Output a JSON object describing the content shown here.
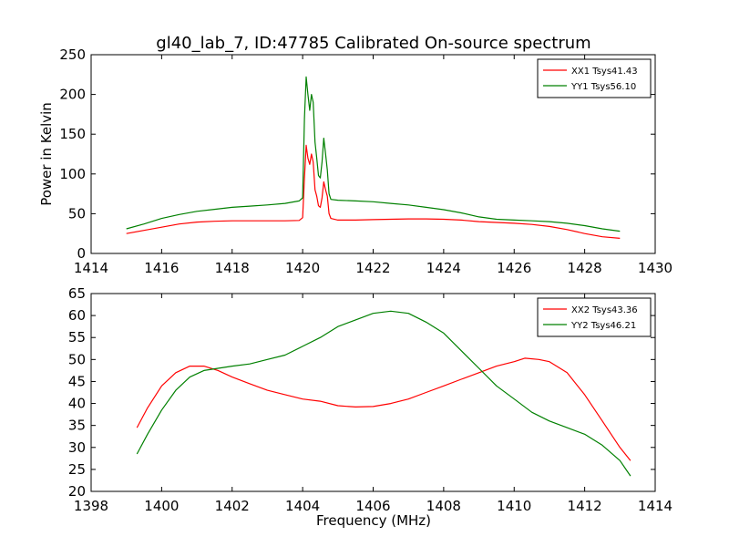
{
  "chart_data": [
    {
      "type": "line",
      "title": "gl40_lab_7, ID:47785 Calibrated On-source spectrum",
      "xlabel": "",
      "ylabel": "Power in Kelvin",
      "xlim": [
        1414,
        1430
      ],
      "ylim": [
        0,
        250
      ],
      "xticks": [
        1414,
        1416,
        1418,
        1420,
        1422,
        1424,
        1426,
        1428,
        1430
      ],
      "yticks": [
        0,
        50,
        100,
        150,
        200,
        250
      ],
      "legend_position": "top-right",
      "series": [
        {
          "name": "XX1 Tsys41.43",
          "color": "#ff0000",
          "points": [
            [
              1415.0,
              25
            ],
            [
              1415.5,
              29
            ],
            [
              1416.0,
              33
            ],
            [
              1416.5,
              37
            ],
            [
              1417.0,
              39.5
            ],
            [
              1417.5,
              40.5
            ],
            [
              1418.0,
              41
            ],
            [
              1418.5,
              41
            ],
            [
              1419.0,
              41
            ],
            [
              1419.5,
              41
            ],
            [
              1419.9,
              41.5
            ],
            [
              1420.0,
              45
            ],
            [
              1420.05,
              95
            ],
            [
              1420.1,
              136
            ],
            [
              1420.15,
              120
            ],
            [
              1420.2,
              112
            ],
            [
              1420.25,
              125
            ],
            [
              1420.3,
              115
            ],
            [
              1420.35,
              80
            ],
            [
              1420.4,
              72
            ],
            [
              1420.45,
              60
            ],
            [
              1420.5,
              58
            ],
            [
              1420.55,
              70
            ],
            [
              1420.6,
              90
            ],
            [
              1420.65,
              80
            ],
            [
              1420.7,
              72
            ],
            [
              1420.75,
              50
            ],
            [
              1420.8,
              44
            ],
            [
              1421.0,
              42
            ],
            [
              1421.5,
              42
            ],
            [
              1422.0,
              42.5
            ],
            [
              1422.5,
              43
            ],
            [
              1423.0,
              43.5
            ],
            [
              1423.5,
              43.5
            ],
            [
              1424.0,
              43
            ],
            [
              1424.5,
              42
            ],
            [
              1425.0,
              40
            ],
            [
              1425.5,
              39
            ],
            [
              1426.0,
              38
            ],
            [
              1426.5,
              36.5
            ],
            [
              1427.0,
              34
            ],
            [
              1427.5,
              30
            ],
            [
              1428.0,
              25
            ],
            [
              1428.5,
              21
            ],
            [
              1429.0,
              19
            ]
          ]
        },
        {
          "name": "YY1 Tsys56.10",
          "color": "#008000",
          "points": [
            [
              1415.0,
              31
            ],
            [
              1415.5,
              37
            ],
            [
              1416.0,
              44
            ],
            [
              1416.5,
              49
            ],
            [
              1417.0,
              53
            ],
            [
              1417.5,
              55.5
            ],
            [
              1418.0,
              58
            ],
            [
              1418.5,
              59.5
            ],
            [
              1419.0,
              61
            ],
            [
              1419.5,
              63
            ],
            [
              1419.9,
              66
            ],
            [
              1420.0,
              70
            ],
            [
              1420.05,
              170
            ],
            [
              1420.1,
              222
            ],
            [
              1420.15,
              200
            ],
            [
              1420.2,
              180
            ],
            [
              1420.25,
              200
            ],
            [
              1420.3,
              190
            ],
            [
              1420.35,
              140
            ],
            [
              1420.4,
              120
            ],
            [
              1420.45,
              98
            ],
            [
              1420.5,
              95
            ],
            [
              1420.55,
              115
            ],
            [
              1420.6,
              145
            ],
            [
              1420.65,
              125
            ],
            [
              1420.7,
              105
            ],
            [
              1420.75,
              75
            ],
            [
              1420.8,
              68
            ],
            [
              1421.0,
              67
            ],
            [
              1421.5,
              66
            ],
            [
              1422.0,
              65
            ],
            [
              1422.5,
              63
            ],
            [
              1423.0,
              61
            ],
            [
              1423.5,
              58
            ],
            [
              1424.0,
              55
            ],
            [
              1424.5,
              51
            ],
            [
              1425.0,
              46
            ],
            [
              1425.5,
              43
            ],
            [
              1426.0,
              42
            ],
            [
              1426.5,
              41
            ],
            [
              1427.0,
              40
            ],
            [
              1427.5,
              38
            ],
            [
              1428.0,
              35
            ],
            [
              1428.5,
              31
            ],
            [
              1429.0,
              28
            ]
          ]
        }
      ]
    },
    {
      "type": "line",
      "title": "",
      "xlabel": "Frequency (MHz)",
      "ylabel": "",
      "xlim": [
        1398,
        1414
      ],
      "ylim": [
        20,
        65
      ],
      "xticks": [
        1398,
        1400,
        1402,
        1404,
        1406,
        1408,
        1410,
        1412,
        1414
      ],
      "yticks": [
        20,
        25,
        30,
        35,
        40,
        45,
        50,
        55,
        60,
        65
      ],
      "legend_position": "top-right",
      "series": [
        {
          "name": "XX2 Tsys43.36",
          "color": "#ff0000",
          "points": [
            [
              1399.3,
              34.5
            ],
            [
              1399.6,
              39
            ],
            [
              1400.0,
              44
            ],
            [
              1400.4,
              47
            ],
            [
              1400.8,
              48.5
            ],
            [
              1401.2,
              48.5
            ],
            [
              1401.6,
              47.5
            ],
            [
              1402.0,
              46
            ],
            [
              1402.5,
              44.5
            ],
            [
              1403.0,
              43
            ],
            [
              1403.5,
              42
            ],
            [
              1404.0,
              41
            ],
            [
              1404.5,
              40.5
            ],
            [
              1405.0,
              39.5
            ],
            [
              1405.5,
              39.2
            ],
            [
              1406.0,
              39.3
            ],
            [
              1406.5,
              40
            ],
            [
              1407.0,
              41
            ],
            [
              1407.5,
              42.5
            ],
            [
              1408.0,
              44
            ],
            [
              1408.5,
              45.5
            ],
            [
              1409.0,
              47
            ],
            [
              1409.5,
              48.5
            ],
            [
              1410.0,
              49.5
            ],
            [
              1410.3,
              50.3
            ],
            [
              1410.7,
              50
            ],
            [
              1411.0,
              49.5
            ],
            [
              1411.5,
              47
            ],
            [
              1412.0,
              42
            ],
            [
              1412.5,
              36
            ],
            [
              1413.0,
              30
            ],
            [
              1413.3,
              27
            ]
          ]
        },
        {
          "name": "YY2 Tsys46.21",
          "color": "#008000",
          "points": [
            [
              1399.3,
              28.5
            ],
            [
              1399.6,
              33
            ],
            [
              1400.0,
              38.5
            ],
            [
              1400.4,
              43
            ],
            [
              1400.8,
              46
            ],
            [
              1401.2,
              47.5
            ],
            [
              1401.6,
              48
            ],
            [
              1402.0,
              48.5
            ],
            [
              1402.5,
              49
            ],
            [
              1403.0,
              50
            ],
            [
              1403.5,
              51
            ],
            [
              1404.0,
              53
            ],
            [
              1404.5,
              55
            ],
            [
              1405.0,
              57.5
            ],
            [
              1405.5,
              59
            ],
            [
              1406.0,
              60.5
            ],
            [
              1406.5,
              61
            ],
            [
              1407.0,
              60.5
            ],
            [
              1407.5,
              58.5
            ],
            [
              1408.0,
              56
            ],
            [
              1408.5,
              52
            ],
            [
              1409.0,
              48
            ],
            [
              1409.5,
              44
            ],
            [
              1410.0,
              41
            ],
            [
              1410.5,
              38
            ],
            [
              1411.0,
              36
            ],
            [
              1411.5,
              34.5
            ],
            [
              1412.0,
              33
            ],
            [
              1412.5,
              30.5
            ],
            [
              1413.0,
              27
            ],
            [
              1413.3,
              23.5
            ]
          ]
        }
      ]
    }
  ]
}
